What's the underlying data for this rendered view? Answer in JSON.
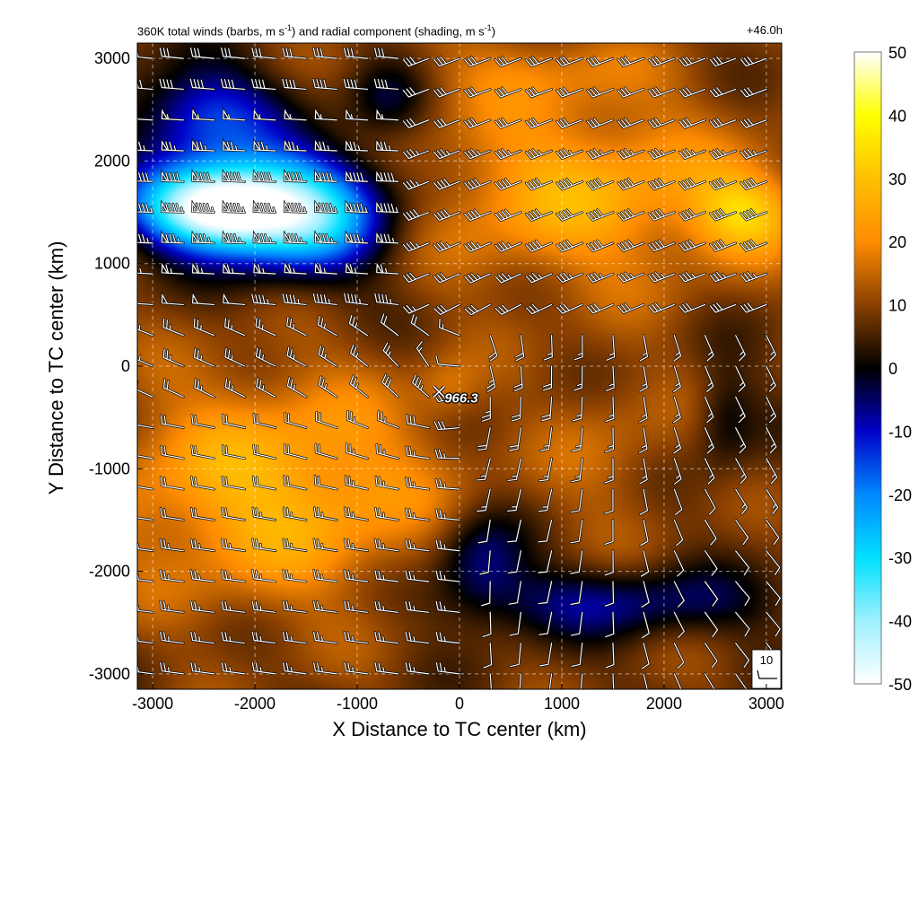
{
  "title": {
    "prefix": "360K total winds (barbs, m s",
    "mid": ") and radial component (shading, m s",
    "suffix": ")",
    "exponent": "-1"
  },
  "time_label": "+46.0h",
  "chart_data": {
    "type": "heatmap",
    "xlabel": "X Distance to TC center (km)",
    "ylabel": "Y Distance to TC center (km)",
    "xlim": [
      -3150,
      3150
    ],
    "ylim": [
      -3150,
      3150
    ],
    "xticks": [
      -3000,
      -2000,
      -1000,
      0,
      1000,
      2000,
      3000
    ],
    "yticks": [
      -3000,
      -2000,
      -1000,
      0,
      1000,
      2000,
      3000
    ],
    "grid": true,
    "colorbar": {
      "range": [
        -50,
        50
      ],
      "ticks": [
        50,
        40,
        30,
        20,
        10,
        0,
        -10,
        -20,
        -30,
        -40,
        -50
      ],
      "stops": [
        {
          "v": -50,
          "c": "#ffffff"
        },
        {
          "v": -40,
          "c": "#9ef0ff"
        },
        {
          "v": -30,
          "c": "#00e0ff"
        },
        {
          "v": -20,
          "c": "#0088ff"
        },
        {
          "v": -10,
          "c": "#0000c8"
        },
        {
          "v": 0,
          "c": "#000000"
        },
        {
          "v": 10,
          "c": "#8a4000"
        },
        {
          "v": 20,
          "c": "#ff8c00"
        },
        {
          "v": 30,
          "c": "#ffc000"
        },
        {
          "v": 40,
          "c": "#ffff00"
        },
        {
          "v": 50,
          "c": "#ffffff"
        }
      ]
    },
    "center_marker": {
      "x": -200,
      "y": -250,
      "label": "966.3"
    },
    "reference_barb": {
      "label": "10",
      "speed": 10
    },
    "field_features": [
      {
        "x": -2400,
        "y": 1550,
        "amp": -60,
        "sx": 750,
        "sy": 400
      },
      {
        "x": -1500,
        "y": 1500,
        "amp": -40,
        "sx": 800,
        "sy": 600
      },
      {
        "x": -2500,
        "y": 2450,
        "amp": -22,
        "sx": 700,
        "sy": 500
      },
      {
        "x": -700,
        "y": 2600,
        "amp": -10,
        "sx": 400,
        "sy": 400
      },
      {
        "x": 1200,
        "y": 1700,
        "amp": 18,
        "sx": 1600,
        "sy": 900
      },
      {
        "x": 2800,
        "y": 1500,
        "amp": 20,
        "sx": 500,
        "sy": 400
      },
      {
        "x": 700,
        "y": 2900,
        "amp": 8,
        "sx": 1200,
        "sy": 400
      },
      {
        "x": -1800,
        "y": -1200,
        "amp": 20,
        "sx": 1600,
        "sy": 1100
      },
      {
        "x": -100,
        "y": -200,
        "amp": 6,
        "sx": 300,
        "sy": 300
      },
      {
        "x": 200,
        "y": -1900,
        "amp": -15,
        "sx": 450,
        "sy": 500
      },
      {
        "x": 1500,
        "y": -2300,
        "amp": -14,
        "sx": 1500,
        "sy": 350
      },
      {
        "x": 2600,
        "y": -500,
        "amp": -9,
        "sx": 300,
        "sy": 500
      },
      {
        "x": 1500,
        "y": -800,
        "amp": 6,
        "sx": 700,
        "sy": 900
      }
    ],
    "wind_field": {
      "spacing": 300,
      "regions": [
        {
          "name": "northwest-jet",
          "speed_max": 90,
          "direction_deg_from": 270
        },
        {
          "name": "northeast",
          "speed_max": 40,
          "direction_deg_from": 250
        },
        {
          "name": "southwest",
          "speed_max": 25,
          "direction_deg_from": 280
        },
        {
          "name": "southeast",
          "speed_max": 15,
          "direction_deg_from": 200
        }
      ]
    }
  }
}
